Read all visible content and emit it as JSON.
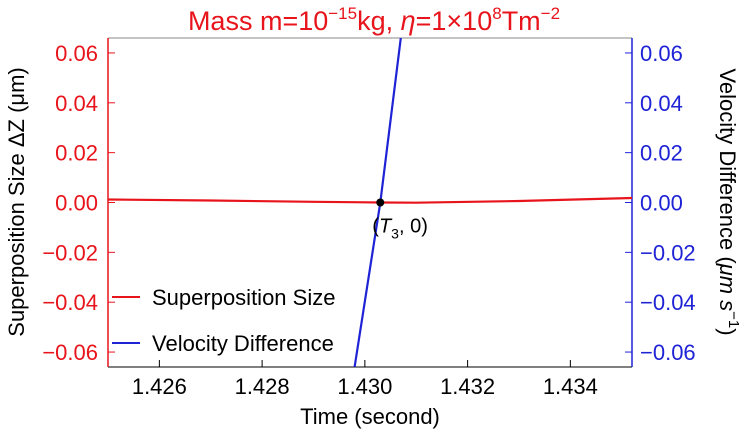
{
  "chart_data": {
    "type": "line",
    "title": {
      "prefix": "Mass m=10",
      "mass_exp": "−15",
      "mid": "kg, ",
      "eta_symbol": "η",
      "eta_mid": "=1×10",
      "eta_exp": "8",
      "eta_unit": "Tm",
      "unit_exp": "−2"
    },
    "xlabel": "Time (second)",
    "ylabel_left": "Superposition Size ΔZ (μm)",
    "ylabel_right_main": "Velocity Difference (",
    "ylabel_right_unit": "μm s",
    "ylabel_right_exp": "−1",
    "ylabel_right_close": ")",
    "xlim": [
      1.425,
      1.4352
    ],
    "ylim_left": [
      -0.066,
      0.066
    ],
    "ylim_right": [
      -0.066,
      0.066
    ],
    "x_ticks": [
      1.426,
      1.428,
      1.43,
      1.432,
      1.434
    ],
    "x_tick_labels": [
      "1.426",
      "1.428",
      "1.430",
      "1.432",
      "1.434"
    ],
    "y_ticks": [
      -0.06,
      -0.04,
      -0.02,
      0.0,
      0.02,
      0.04,
      0.06
    ],
    "y_tick_labels": [
      "−0.06",
      "−0.04",
      "−0.02",
      "0.00",
      "0.02",
      "0.04",
      "0.06"
    ],
    "colors": {
      "left_axis": "#e8141b",
      "right_axis": "#1f23d6",
      "superposition": "#e8141b",
      "velocity": "#1f23d6",
      "marker": "#000000"
    },
    "legend_position": "bottom-left",
    "series": [
      {
        "name": "Superposition Size",
        "axis": "left",
        "x": [
          1.425,
          1.427,
          1.429,
          1.43,
          1.4303,
          1.431,
          1.433,
          1.4352
        ],
        "y": [
          0.0012,
          0.0008,
          0.0003,
          0.0001,
          0.0,
          -0.0001,
          0.0006,
          0.0018
        ]
      },
      {
        "name": "Velocity Difference",
        "axis": "right",
        "x": [
          1.4298,
          1.4303,
          1.4307
        ],
        "y": [
          -0.066,
          0.0,
          0.066
        ]
      }
    ],
    "annotation": {
      "x": 1.4303,
      "y": 0.0,
      "label_open": "(",
      "label_T": "T",
      "label_sub": "3",
      "label_close": ",  0)"
    }
  }
}
